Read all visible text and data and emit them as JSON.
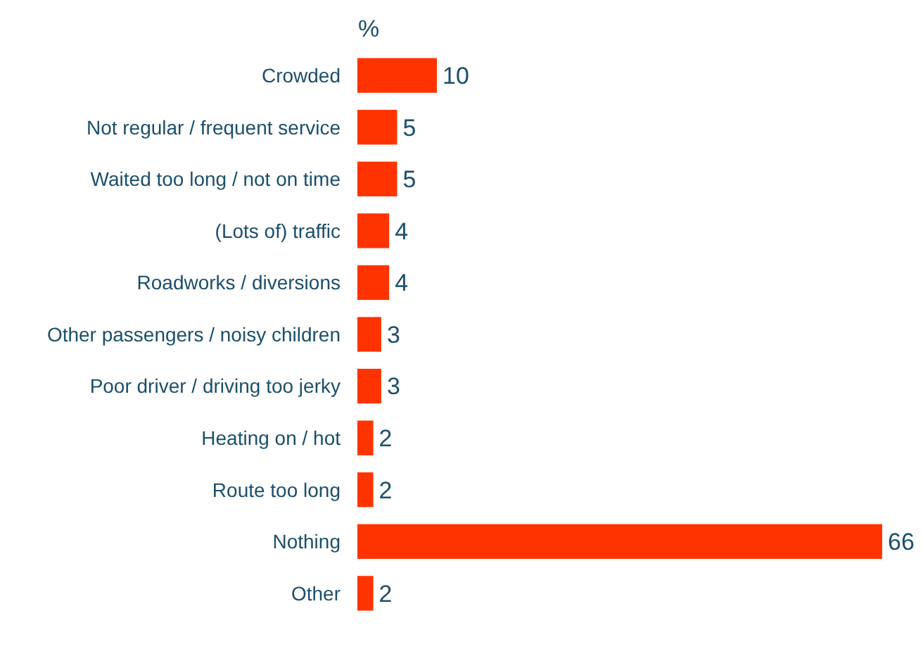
{
  "chart_data": {
    "type": "bar",
    "orientation": "horizontal",
    "xlabel": "%",
    "categories": [
      "Crowded",
      "Not regular / frequent service",
      "Waited too long / not on time",
      "(Lots of) traffic",
      "Roadworks / diversions",
      "Other passengers / noisy children",
      "Poor driver / driving too jerky",
      "Heating on / hot",
      "Route too long",
      "Nothing",
      "Other"
    ],
    "values": [
      10,
      5,
      5,
      4,
      4,
      3,
      3,
      2,
      2,
      66,
      2
    ],
    "color": "#ff3300",
    "data_labels": true
  }
}
